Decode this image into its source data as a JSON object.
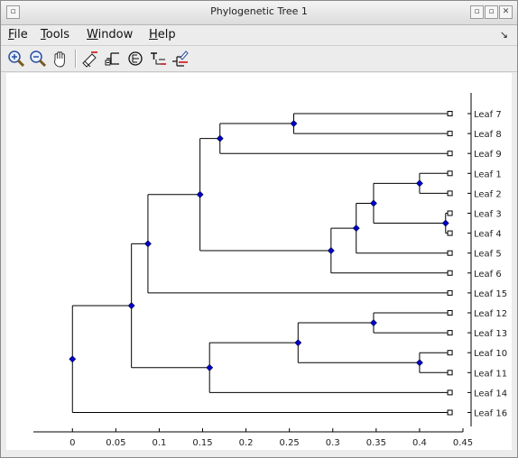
{
  "window": {
    "title": "Phylogenetic Tree 1"
  },
  "menu": [
    {
      "label": "File",
      "key": "F",
      "rest": "ile"
    },
    {
      "label": "Tools",
      "key": "T",
      "rest": "ools"
    },
    {
      "label": "Window",
      "key": "W",
      "rest": "indow"
    },
    {
      "label": "Help",
      "key": "H",
      "rest": "elp"
    }
  ],
  "toolbar": [
    {
      "name": "zoom-in-icon"
    },
    {
      "name": "zoom-out-icon"
    },
    {
      "name": "pan-hand-icon"
    },
    {
      "name": "prune-icon"
    },
    {
      "name": "collapse-expand-icon"
    },
    {
      "name": "rotate-branch-icon"
    },
    {
      "name": "rename-icon"
    },
    {
      "name": "find-leaf-icon"
    }
  ],
  "chart_data": {
    "type": "dendrogram",
    "title": "",
    "xlabel": "",
    "ylabel": "",
    "xlim": [
      -0.045,
      0.45
    ],
    "x_ticks": [
      "0",
      "0.05",
      "0.1",
      "0.15",
      "0.2",
      "0.25",
      "0.3",
      "0.35",
      "0.4",
      "0.45"
    ],
    "x_tick_values": [
      0,
      0.05,
      0.1,
      0.15,
      0.2,
      0.25,
      0.3,
      0.35,
      0.4,
      0.45
    ],
    "leaves": [
      {
        "label": "Leaf 7",
        "x": 0.435
      },
      {
        "label": "Leaf 8",
        "x": 0.435
      },
      {
        "label": "Leaf 9",
        "x": 0.435
      },
      {
        "label": "Leaf 1",
        "x": 0.435
      },
      {
        "label": "Leaf 2",
        "x": 0.435
      },
      {
        "label": "Leaf 3",
        "x": 0.435
      },
      {
        "label": "Leaf 4",
        "x": 0.435
      },
      {
        "label": "Leaf 5",
        "x": 0.435
      },
      {
        "label": "Leaf 6",
        "x": 0.435
      },
      {
        "label": "Leaf 15",
        "x": 0.435
      },
      {
        "label": "Leaf 12",
        "x": 0.435
      },
      {
        "label": "Leaf 13",
        "x": 0.435
      },
      {
        "label": "Leaf 10",
        "x": 0.435
      },
      {
        "label": "Leaf 11",
        "x": 0.435
      },
      {
        "label": "Leaf 14",
        "x": 0.435
      },
      {
        "label": "Leaf 16",
        "x": 0.435
      }
    ],
    "branch_nodes": [
      {
        "id": "n78",
        "x": 0.255,
        "children": [
          "L0",
          "L1"
        ]
      },
      {
        "id": "n789",
        "x": 0.17,
        "children": [
          "n78",
          "L2"
        ]
      },
      {
        "id": "n12",
        "x": 0.4,
        "children": [
          "L3",
          "L4"
        ]
      },
      {
        "id": "n34",
        "x": 0.43,
        "children": [
          "L5",
          "L6"
        ]
      },
      {
        "id": "n1234",
        "x": 0.347,
        "children": [
          "n12",
          "n34"
        ]
      },
      {
        "id": "n12345",
        "x": 0.327,
        "children": [
          "n1234",
          "L7"
        ]
      },
      {
        "id": "n123456",
        "x": 0.298,
        "children": [
          "n12345",
          "L8"
        ]
      },
      {
        "id": "nUpper",
        "x": 0.147,
        "children": [
          "n789",
          "n123456"
        ]
      },
      {
        "id": "nUpper15",
        "x": 0.087,
        "children": [
          "nUpper",
          "L9"
        ]
      },
      {
        "id": "n1213",
        "x": 0.347,
        "children": [
          "L10",
          "L11"
        ]
      },
      {
        "id": "n1011",
        "x": 0.4,
        "children": [
          "L12",
          "L13"
        ]
      },
      {
        "id": "n10to13",
        "x": 0.26,
        "children": [
          "n1213",
          "n1011"
        ]
      },
      {
        "id": "n10to14",
        "x": 0.158,
        "children": [
          "n10to13",
          "L14"
        ]
      },
      {
        "id": "nMid",
        "x": 0.068,
        "children": [
          "nUpper15",
          "n10to14"
        ]
      },
      {
        "id": "nRoot",
        "x": 0.0,
        "children": [
          "nMid",
          "L15"
        ]
      }
    ],
    "grid": false,
    "legend": "none"
  }
}
